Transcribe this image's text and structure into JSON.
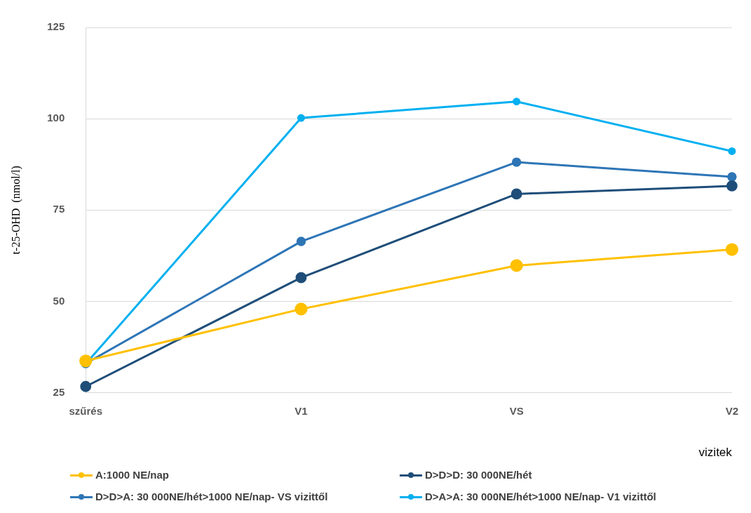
{
  "chart_data": {
    "type": "line",
    "xlabel": "vizitek",
    "ylabel": "t-25-OHD  (nmol/l)",
    "categories": [
      "szűrés",
      "V1",
      "VS",
      "V2"
    ],
    "series": [
      {
        "name": "A:1000 NE/nap",
        "color": "#ffc000",
        "values": [
          33.7,
          47.9,
          59.8,
          64.2
        ]
      },
      {
        "name": "D>D>D: 30 000NE/hét",
        "color": "#1f4e79",
        "values": [
          26.7,
          56.5,
          79.4,
          81.6
        ]
      },
      {
        "name": "D>D>A: 30 000NE/hét>1000 NE/nap- VS vizittől",
        "color": "#2e75b6",
        "values": [
          33.0,
          66.4,
          88.1,
          84.1
        ]
      },
      {
        "name": "D>A>A: 30 000NE/hét>1000 NE/nap- V1 vizittől",
        "color": "#00b0f0",
        "values": [
          32.9,
          100.2,
          104.7,
          91.1
        ]
      }
    ],
    "ylim": [
      25,
      125
    ],
    "yticks": [
      25,
      50,
      75,
      100,
      125
    ],
    "grid": "y",
    "legend": "bottom",
    "marker": "circle",
    "line_style": "solid"
  }
}
